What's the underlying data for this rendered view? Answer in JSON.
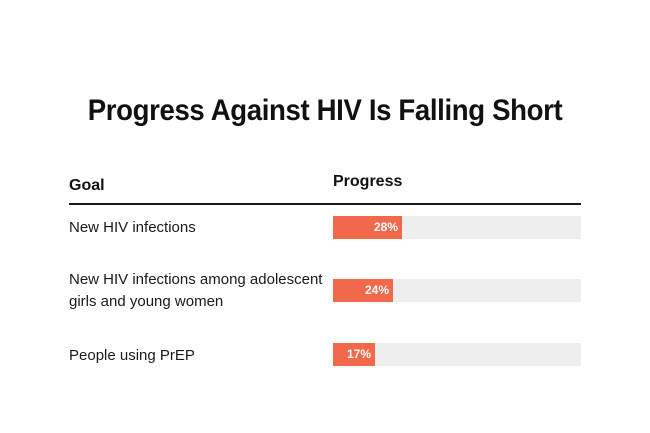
{
  "chart_data": {
    "type": "bar",
    "orientation": "horizontal",
    "title": "Progress Against HIV Is Falling Short",
    "column_headers": [
      "Goal",
      "Progress"
    ],
    "categories": [
      "New HIV infections",
      "New HIV infections among adolescent girls and young women",
      "People using PrEP"
    ],
    "values": [
      28,
      24,
      17
    ],
    "value_labels": [
      "28%",
      "24%",
      "17%"
    ],
    "unit": "%",
    "xlim": [
      0,
      100
    ],
    "grid": false,
    "legend": "none",
    "colors": {
      "fill": "#f2684a",
      "track": "#eeeeee",
      "rule": "#1a1a1a"
    }
  }
}
